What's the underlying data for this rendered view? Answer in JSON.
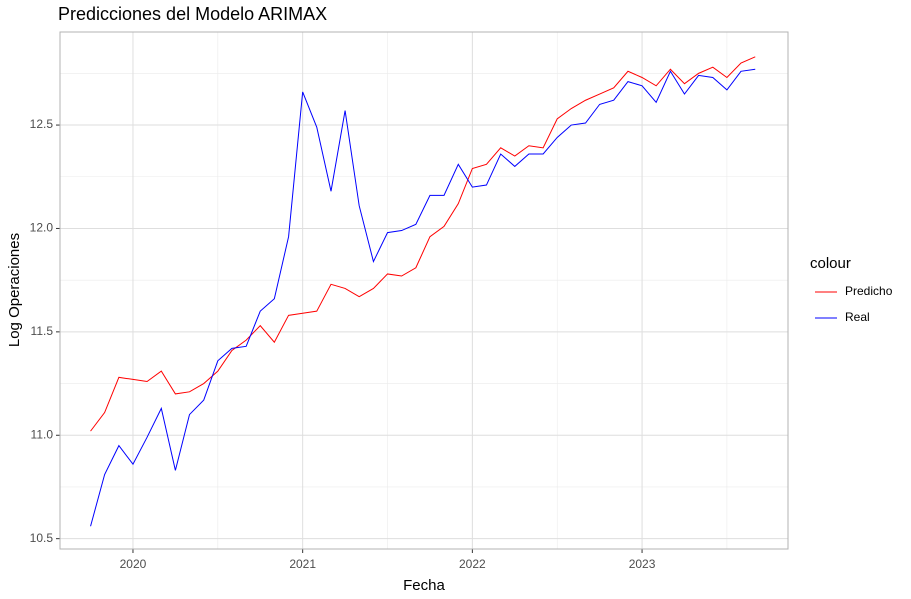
{
  "chart_data": {
    "type": "line",
    "title": "Predicciones del Modelo ARIMAX",
    "x_label": "Fecha",
    "y_label": "Log Operaciones",
    "legend_title": "colour",
    "legend_position": "right",
    "x": [
      2019.75,
      2019.833,
      2019.917,
      2020,
      2020.083,
      2020.167,
      2020.25,
      2020.333,
      2020.417,
      2020.5,
      2020.583,
      2020.667,
      2020.75,
      2020.833,
      2020.917,
      2021,
      2021.083,
      2021.167,
      2021.25,
      2021.333,
      2021.417,
      2021.5,
      2021.583,
      2021.667,
      2021.75,
      2021.833,
      2021.917,
      2022,
      2022.083,
      2022.167,
      2022.25,
      2022.333,
      2022.417,
      2022.5,
      2022.583,
      2022.667,
      2022.75,
      2022.833,
      2022.917,
      2023,
      2023.083,
      2023.167,
      2023.25,
      2023.333,
      2023.417,
      2023.5,
      2023.583,
      2023.667
    ],
    "series": [
      {
        "name": "Predicho",
        "color": "#ff0000",
        "values": [
          11.02,
          11.11,
          11.28,
          11.27,
          11.26,
          11.31,
          11.2,
          11.21,
          11.25,
          11.31,
          11.41,
          11.46,
          11.53,
          11.45,
          11.58,
          11.59,
          11.6,
          11.73,
          11.71,
          11.67,
          11.71,
          11.78,
          11.77,
          11.81,
          11.96,
          12.01,
          12.12,
          12.29,
          12.31,
          12.39,
          12.35,
          12.4,
          12.39,
          12.53,
          12.58,
          12.62,
          12.65,
          12.68,
          12.76,
          12.73,
          12.69,
          12.77,
          12.7,
          12.75,
          12.78,
          12.73,
          12.8,
          12.83
        ]
      },
      {
        "name": "Real",
        "color": "#0000ff",
        "values": [
          10.56,
          10.81,
          10.95,
          10.86,
          10.99,
          11.13,
          10.83,
          11.1,
          11.17,
          11.36,
          11.42,
          11.43,
          11.6,
          11.66,
          11.96,
          12.66,
          12.49,
          12.18,
          12.57,
          12.11,
          11.84,
          11.98,
          11.99,
          12.02,
          12.16,
          12.16,
          12.31,
          12.2,
          12.21,
          12.36,
          12.3,
          12.36,
          12.36,
          12.44,
          12.5,
          12.51,
          12.6,
          12.62,
          12.71,
          12.69,
          12.61,
          12.76,
          12.65,
          12.74,
          12.73,
          12.67,
          12.76,
          12.77
        ]
      }
    ],
    "xlim": [
      2019.57,
      2023.86
    ],
    "xticks": [
      2020,
      2021,
      2022,
      2023
    ],
    "minor_xticks": [
      2020.5,
      2021.5,
      2022.5,
      2023.5
    ],
    "ylim": [
      10.45,
      12.95
    ],
    "yticks": [
      10.5,
      {
        "value": 11,
        "label": "11.0"
      },
      11.5,
      {
        "value": 12,
        "label": "12.0"
      },
      12.5
    ],
    "minor_yticks": [
      10.75,
      11.25,
      11.75,
      12.25,
      12.75
    ],
    "grid": true
  }
}
